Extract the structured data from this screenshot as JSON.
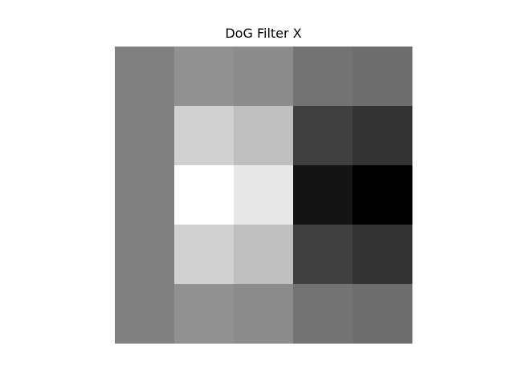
{
  "chart_data": {
    "type": "heatmap",
    "title": "DoG Filter X",
    "colormap": "gray",
    "axes_visible": false,
    "rows": 5,
    "cols": 5,
    "values": [
      [
        0.5,
        0.57,
        0.55,
        0.45,
        0.43
      ],
      [
        0.5,
        0.82,
        0.75,
        0.25,
        0.2
      ],
      [
        0.5,
        1.0,
        0.91,
        0.08,
        0.0
      ],
      [
        0.5,
        0.82,
        0.75,
        0.25,
        0.2
      ],
      [
        0.5,
        0.57,
        0.55,
        0.45,
        0.43
      ]
    ]
  }
}
